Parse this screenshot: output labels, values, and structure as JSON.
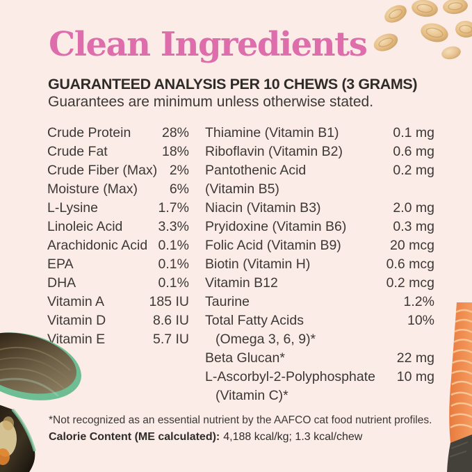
{
  "page": {
    "title": "Clean Ingredients",
    "header": "GUARANTEED ANALYSIS PER 10 CHEWS (3 GRAMS)",
    "subheader": "Guarantees are minimum unless otherwise stated."
  },
  "analysis": {
    "left_column": [
      {
        "label": "Crude Protein",
        "value": "28%"
      },
      {
        "label": "Crude Fat",
        "value": "18%"
      },
      {
        "label": "Crude Fiber (Max)",
        "value": "2%"
      },
      {
        "label": "Moisture (Max)",
        "value": "6%"
      },
      {
        "label": "L-Lysine",
        "value": "1.7%"
      },
      {
        "label": "Linoleic Acid",
        "value": "3.3%"
      },
      {
        "label": "Arachidonic Acid",
        "value": "0.1%"
      },
      {
        "label": "EPA",
        "value": "0.1%"
      },
      {
        "label": "DHA",
        "value": "0.1%"
      },
      {
        "label": "Vitamin A",
        "value": "185 IU"
      },
      {
        "label": "Vitamin D",
        "value": "8.6 IU"
      },
      {
        "label": "Vitamin E",
        "value": "5.7 IU"
      }
    ],
    "right_column": [
      {
        "label": "Thiamine (Vitamin B1)",
        "value": "0.1 mg"
      },
      {
        "label": "Riboflavin (Vitamin B2)",
        "value": "0.6 mg"
      },
      {
        "label": "Pantothenic Acid",
        "label2": "(Vitamin B5)",
        "label2_indent": false,
        "value": "0.2 mg"
      },
      {
        "label": "Niacin (Vitamin B3)",
        "value": "2.0 mg"
      },
      {
        "label": "Pryidoxine (Vitamin B6)",
        "value": "0.3 mg"
      },
      {
        "label": "Folic Acid (Vitamin B9)",
        "value": "20 mcg"
      },
      {
        "label": "Biotin (Vitamin H)",
        "value": "0.6 mcg"
      },
      {
        "label": "Vitamin B12",
        "value": "0.2 mcg"
      },
      {
        "label": "Taurine",
        "value": "1.2%"
      },
      {
        "label": "Total Fatty Acids",
        "label2": "(Omega 3, 6, 9)*",
        "label2_indent": true,
        "value": "10%"
      },
      {
        "label": "Beta Glucan*",
        "value": "22 mg"
      },
      {
        "label": "L-Ascorbyl-2-Polyphosphate",
        "label2": "(Vitamin C)*",
        "label2_indent": true,
        "value": "10 mg"
      }
    ]
  },
  "footnotes": {
    "asterisk_note": "*Not recognized as an essential nutrient by the AAFCO cat food nutrient profiles.",
    "calorie_label": "Calorie Content (ME calculated):",
    "calorie_value": "4,188 kcal/kg; 1.3 kcal/chew"
  },
  "decorations": {
    "top_right": "oat-flakes",
    "bottom_left": "green-lipped-mussel-shells",
    "bottom_right": "salmon-fillet"
  },
  "colors": {
    "background": "#fbece8",
    "accent_pink": "#dd6dab",
    "text_dark": "#3c3835",
    "heading_dark": "#2e2b29",
    "oat_tan": "#e9c28c",
    "mussel_green": "#7cc79e",
    "salmon_orange": "#f08a50"
  }
}
